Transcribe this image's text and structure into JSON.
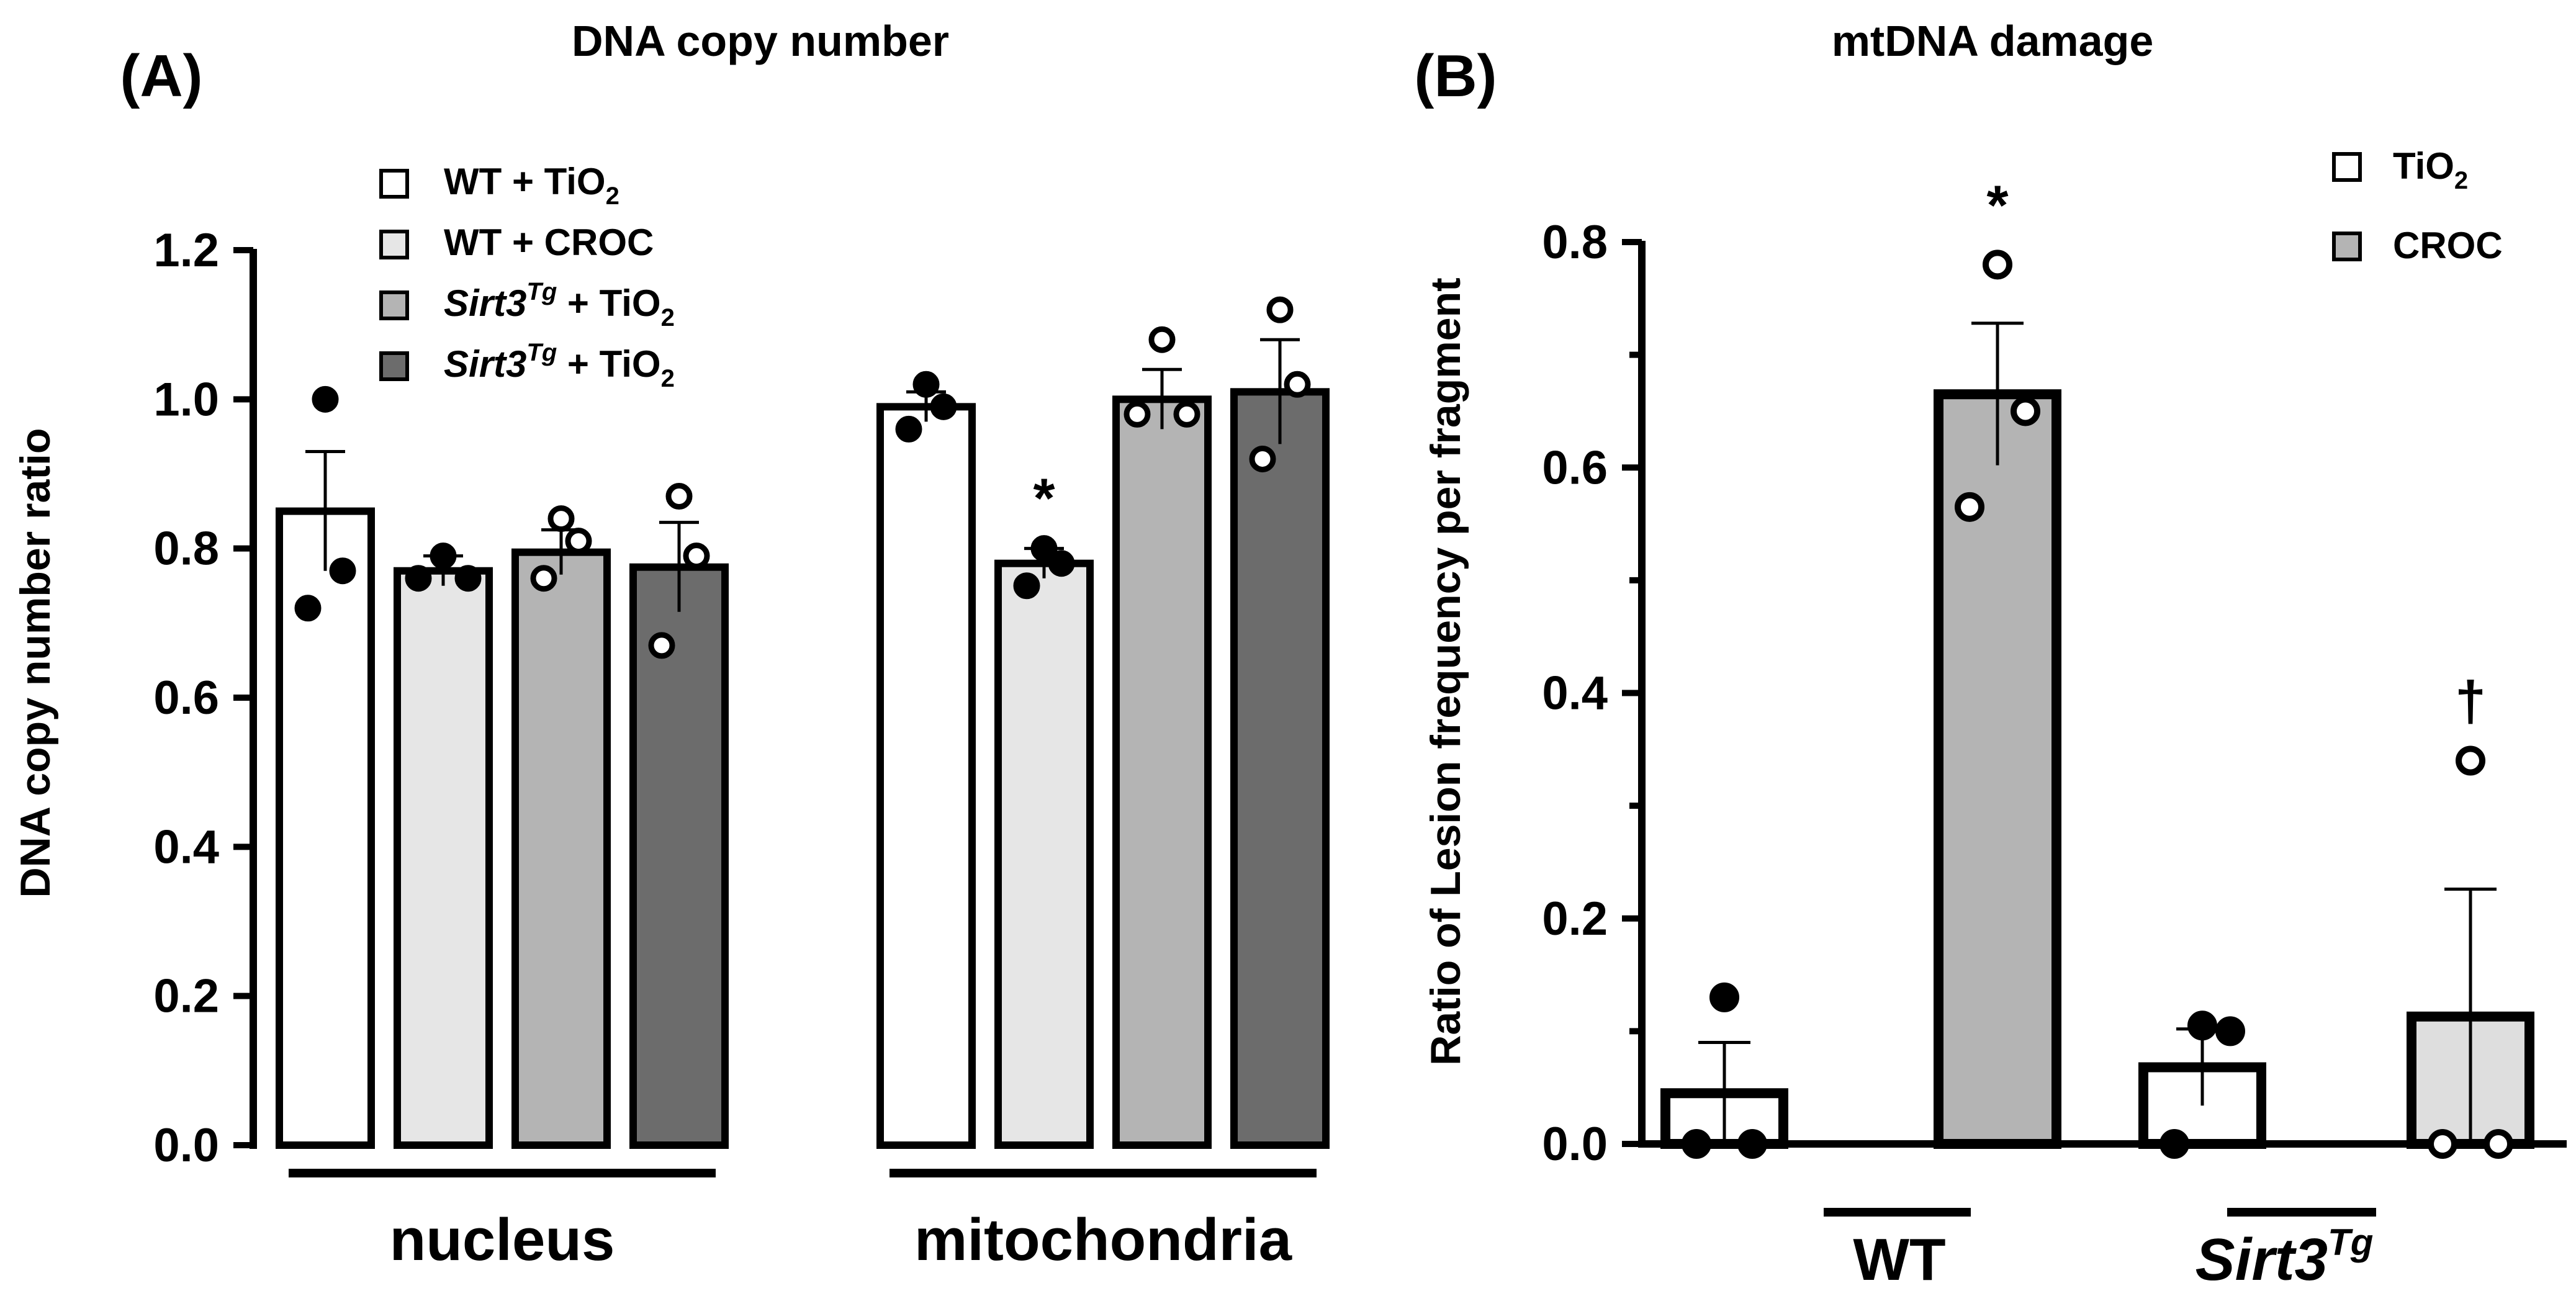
{
  "chart_data": [
    {
      "panel": "(A)",
      "type": "bar",
      "title": "DNA copy number",
      "ylabel": "DNA copy number ratio",
      "ylim": [
        0,
        1.2
      ],
      "yticks": [
        "0.0",
        "0.2",
        "0.4",
        "0.6",
        "0.8",
        "1.0",
        "1.2"
      ],
      "categories": [
        "nucleus",
        "mitochondria"
      ],
      "legend": [
        {
          "prefix": "WT",
          "suffix": " + TiO",
          "sub": "2",
          "italic_prefix": false,
          "color": "#ffffff"
        },
        {
          "prefix": "WT",
          "suffix": " +  CROC",
          "sub": "",
          "italic_prefix": false,
          "color": "#e6e6e6"
        },
        {
          "prefix": "Sirt3",
          "sup": "Tg",
          "suffix": " + TiO",
          "sub": "2",
          "italic_prefix": true,
          "color": "#b4b4b4"
        },
        {
          "prefix": "Sirt3",
          "sup": "Tg",
          "suffix": " + TiO",
          "sub": "2",
          "italic_prefix": true,
          "color": "#6c6c6c"
        }
      ],
      "series": [
        {
          "name": "WT + TiO2",
          "values": [
            0.85,
            0.99
          ],
          "errors": [
            0.08,
            0.02
          ],
          "points": [
            [
              1.0,
              0.77,
              0.72
            ],
            [
              1.02,
              0.99,
              0.96
            ]
          ],
          "filled": true,
          "color": "#ffffff"
        },
        {
          "name": "WT + CROC",
          "values": [
            0.77,
            0.78
          ],
          "errors": [
            0.02,
            0.02
          ],
          "points": [
            [
              0.79,
              0.76,
              0.76
            ],
            [
              0.8,
              0.78,
              0.75
            ]
          ],
          "filled": true,
          "color": "#e6e6e6"
        },
        {
          "name": "Sirt3Tg + TiO2",
          "values": [
            0.795,
            1.0
          ],
          "errors": [
            0.03,
            0.04
          ],
          "points": [
            [
              0.84,
              0.81,
              0.76
            ],
            [
              1.08,
              0.98,
              0.98
            ]
          ],
          "filled": false,
          "color": "#b4b4b4"
        },
        {
          "name": "Sirt3Tg + TiO2",
          "values": [
            0.775,
            1.01
          ],
          "errors": [
            0.06,
            0.07
          ],
          "points": [
            [
              0.87,
              0.79,
              0.67
            ],
            [
              1.12,
              1.02,
              0.92
            ]
          ],
          "filled": false,
          "color": "#6c6c6c"
        }
      ],
      "annotations": [
        {
          "text": "*",
          "series": 1,
          "category": 1
        }
      ]
    },
    {
      "panel": "(B)",
      "type": "bar",
      "title": "mtDNA damage",
      "ylabel": "Ratio of Lesion frequency per fragment",
      "ylim": [
        0,
        0.8
      ],
      "yticks": [
        "0.0",
        "0.2",
        "0.4",
        "0.6",
        "0.8"
      ],
      "categories": [
        "WT",
        "Sirt3"
      ],
      "category_sup": [
        "",
        "Tg"
      ],
      "legend": [
        {
          "prefix": "TiO",
          "sub": "2",
          "color": "#ffffff"
        },
        {
          "prefix": "CROC",
          "sub": "",
          "color": "#b4b4b4"
        }
      ],
      "bars": [
        {
          "group": 0,
          "series": "TiO2",
          "value": 0.045,
          "error": 0.045,
          "color": "#ffffff",
          "points": [
            0.13,
            0.0,
            0.0
          ],
          "filled": true
        },
        {
          "group": 0,
          "series": "CROC",
          "value": 0.665,
          "error": 0.063,
          "color": "#b4b4b4",
          "points": [
            0.78,
            0.65,
            0.565
          ],
          "filled": false
        },
        {
          "group": 1,
          "series": "TiO2",
          "value": 0.068,
          "error": 0.034,
          "color": "#ffffff",
          "points": [
            0.105,
            0.1,
            0.0
          ],
          "filled": true
        },
        {
          "group": 1,
          "series": "CROC",
          "value": 0.113,
          "error": 0.113,
          "color": "#dedede",
          "points": [
            0.34,
            0.0,
            0.0
          ],
          "filled": false
        }
      ],
      "annotations": [
        {
          "text": "*",
          "bar": 1
        },
        {
          "text": "†",
          "bar": 3
        }
      ]
    }
  ]
}
